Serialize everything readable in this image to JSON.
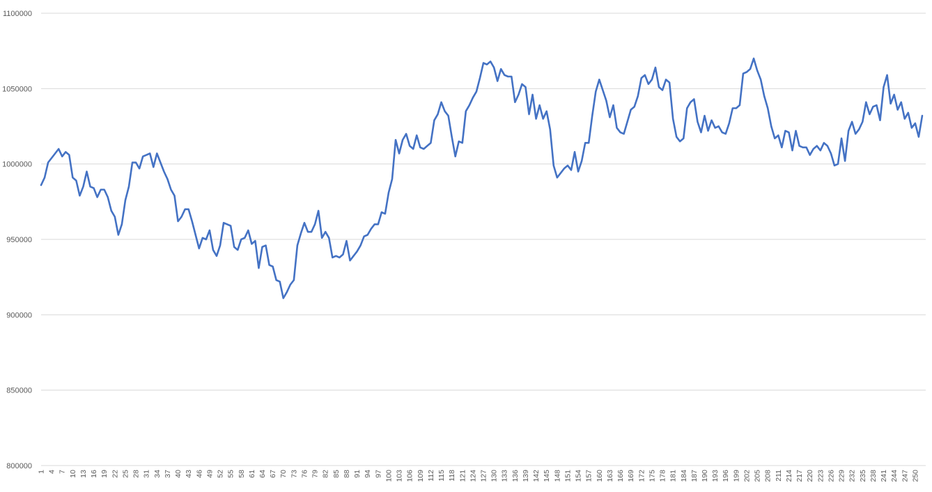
{
  "chart_data": {
    "type": "line",
    "title": "",
    "xlabel": "",
    "ylabel": "",
    "ylim": [
      800000,
      1100000
    ],
    "yticks": [
      "800000",
      "850000",
      "900000",
      "950000",
      "1000000",
      "1050000",
      "1100000"
    ],
    "xlim": [
      1,
      253
    ],
    "x_tick_start": 1,
    "x_tick_step": 3,
    "x_tick_end": 250,
    "grid": true,
    "legend": "none",
    "colors": {
      "series": "#4472c4",
      "grid": "#d9d9d9",
      "axis_text": "#595959"
    },
    "series": [
      {
        "x_start": 1,
        "values": [
          986000,
          991000,
          1001000,
          1004000,
          1007000,
          1010000,
          1005000,
          1008000,
          1006000,
          991000,
          989000,
          979000,
          985000,
          995000,
          985000,
          984000,
          978000,
          983000,
          983000,
          978000,
          969000,
          965000,
          953000,
          960000,
          976000,
          985000,
          1001000,
          1001000,
          997000,
          1005000,
          1006000,
          1007000,
          998000,
          1007000,
          1001000,
          995000,
          990000,
          983000,
          979000,
          962000,
          965000,
          970000,
          970000,
          962000,
          953000,
          944000,
          951000,
          950000,
          956000,
          943000,
          939000,
          946000,
          961000,
          960000,
          959000,
          945000,
          943000,
          950000,
          951000,
          956000,
          947000,
          949000,
          931000,
          945000,
          946000,
          933000,
          932000,
          923000,
          922000,
          911000,
          915000,
          920000,
          923000,
          946000,
          954000,
          961000,
          955000,
          955000,
          960000,
          969000,
          951000,
          955000,
          951000,
          938000,
          939000,
          938000,
          940000,
          949000,
          936000,
          939000,
          942000,
          946000,
          952000,
          953000,
          957000,
          960000,
          960000,
          968000,
          967000,
          981000,
          990000,
          1016000,
          1007000,
          1016000,
          1020000,
          1012000,
          1010000,
          1019000,
          1011000,
          1010000,
          1012000,
          1014000,
          1029000,
          1033000,
          1041000,
          1035000,
          1032000,
          1018000,
          1005000,
          1015000,
          1014000,
          1035000,
          1039000,
          1044000,
          1048000,
          1057000,
          1067000,
          1066000,
          1068000,
          1064000,
          1055000,
          1063000,
          1059000,
          1058000,
          1058000,
          1041000,
          1046000,
          1053000,
          1051000,
          1033000,
          1046000,
          1030000,
          1039000,
          1030000,
          1035000,
          1023000,
          999000,
          991000,
          994000,
          997000,
          999000,
          996000,
          1008000,
          995000,
          1002000,
          1014000,
          1014000,
          1032000,
          1048000,
          1056000,
          1049000,
          1042000,
          1031000,
          1039000,
          1024000,
          1021000,
          1020000,
          1028000,
          1036000,
          1038000,
          1045000,
          1057000,
          1059000,
          1053000,
          1056000,
          1064000,
          1051000,
          1049000,
          1056000,
          1054000,
          1030000,
          1018000,
          1015000,
          1017000,
          1037000,
          1041000,
          1043000,
          1028000,
          1021000,
          1032000,
          1022000,
          1029000,
          1024000,
          1025000,
          1021000,
          1020000,
          1027000,
          1037000,
          1037000,
          1039000,
          1060000,
          1061000,
          1063000,
          1070000,
          1062000,
          1056000,
          1045000,
          1037000,
          1025000,
          1017000,
          1019000,
          1011000,
          1022000,
          1021000,
          1009000,
          1022000,
          1012000,
          1011000,
          1011000,
          1006000,
          1010000,
          1012000,
          1009000,
          1014000,
          1012000,
          1007000,
          999000,
          1000000,
          1017000,
          1002000,
          1022000,
          1028000,
          1020000,
          1023000,
          1028000,
          1041000,
          1033000,
          1038000,
          1039000,
          1029000,
          1051000,
          1059000,
          1040000,
          1046000,
          1036000,
          1041000,
          1030000,
          1034000,
          1024000,
          1027000,
          1018000,
          1032000
        ]
      }
    ]
  }
}
